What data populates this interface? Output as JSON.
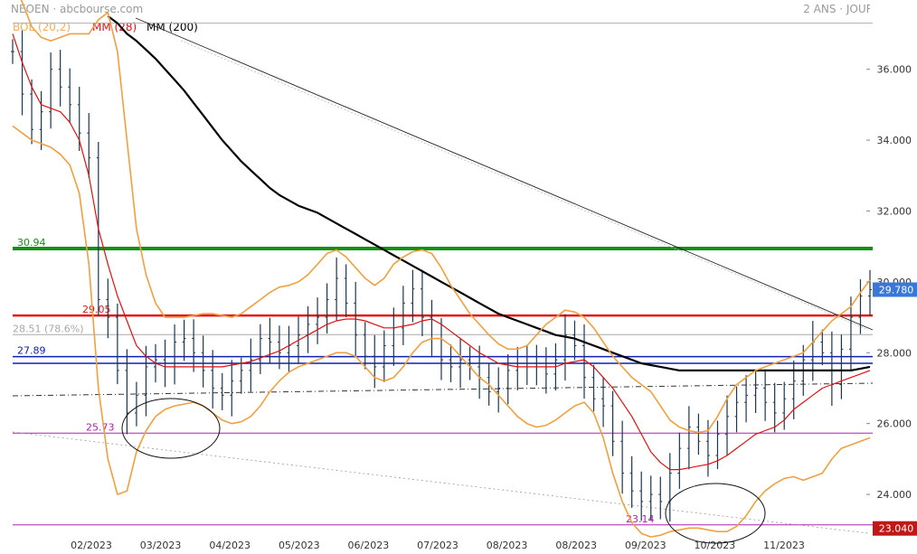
{
  "header": {
    "left": "NEOEN · abcbourse.com",
    "right": "2 ANS · JOUR"
  },
  "legend": [
    {
      "label": "BOL (20,2)",
      "color": "#f0a040"
    },
    {
      "label": "MM (28)",
      "color": "#e01010"
    },
    {
      "label": "MM (200)",
      "color": "#000000"
    }
  ],
  "chart_data": {
    "type": "line",
    "title": "",
    "xlabel": "",
    "ylabel": "",
    "ylim": [
      22.65,
      37.7
    ],
    "x_tick_labels": [
      "02/2023",
      "03/2023",
      "04/2023",
      "05/2023",
      "06/2023",
      "07/2023",
      "08/2023",
      "08/2023",
      "09/2023",
      "10/2023",
      "11/2023"
    ],
    "y_ticks": [
      24,
      26,
      28,
      30,
      32,
      34,
      36
    ],
    "y_tick_labels": [
      "24.000",
      "26.000",
      "28.000",
      "30.000",
      "32.000",
      "34.000",
      "36.000"
    ],
    "last_price": {
      "value": 29.78,
      "label": "29.780"
    },
    "low_price": {
      "value": 23.04,
      "label": "23.040"
    },
    "levels": [
      {
        "name": "level-30-94",
        "value": 30.94,
        "label": "30.94",
        "color": "#129012",
        "width": 4
      },
      {
        "name": "level-29-05",
        "value": 29.05,
        "label": "29.05",
        "color": "#e01818",
        "width": 2.5
      },
      {
        "name": "level-28-51",
        "value": 28.51,
        "label": "28.51  (78.6%)",
        "color": "#a8a8a8",
        "width": 1
      },
      {
        "name": "level-27-89",
        "value": 27.89,
        "label": "27.89",
        "color": "#1020b0",
        "width": 1.5
      },
      {
        "name": "level-27-70",
        "value": 27.7,
        "label": "",
        "color": "#1020b0",
        "width": 1.5
      },
      {
        "name": "level-25-73",
        "value": 25.73,
        "label": "25.73",
        "color": "#b020b0",
        "width": 1
      },
      {
        "name": "level-23-14",
        "value": 23.14,
        "label": "23.14",
        "color": "#b020b0",
        "width": 1
      },
      {
        "name": "level-37-30",
        "value": 37.3,
        "label": "",
        "color": "#b0b0b0",
        "width": 1
      }
    ],
    "price_series": [
      36.5,
      35.3,
      34.3,
      34.8,
      36.0,
      35.5,
      35.0,
      34.2,
      33.5,
      29.5,
      29.0,
      27.5,
      26.3,
      26.8,
      27.6,
      27.8,
      27.6,
      28.3,
      28.4,
      28.0,
      27.5,
      27.0,
      26.8,
      27.2,
      27.5,
      27.8,
      28.4,
      28.3,
      28.0,
      28.2,
      28.5,
      28.8,
      29.0,
      29.5,
      30.1,
      29.4,
      28.5,
      27.9,
      27.6,
      28.2,
      28.7,
      29.4,
      29.8,
      29.0,
      28.4,
      27.8,
      27.6,
      27.8,
      27.6,
      27.3,
      26.9,
      27.0,
      27.5,
      27.6,
      27.7,
      27.6,
      27.4,
      27.8,
      28.5,
      28.2,
      27.3,
      26.7,
      26.5,
      25.5,
      24.6,
      24.1,
      23.8,
      24.0,
      23.8,
      24.6,
      25.3,
      25.9,
      25.5,
      25.1,
      25.7,
      26.2,
      26.6,
      26.8,
      27.0,
      26.6,
      26.3,
      26.7,
      27.2,
      27.8,
      28.3,
      28.0,
      27.1,
      28.1,
      29.0,
      29.6,
      29.78
    ],
    "series": [
      {
        "name": "MM (28)",
        "color": "#e01010",
        "width": 1.2,
        "values": [
          37.0,
          36.2,
          35.5,
          35.0,
          34.9,
          34.8,
          34.5,
          34.0,
          33.0,
          31.5,
          30.5,
          29.6,
          28.9,
          28.2,
          27.9,
          27.7,
          27.6,
          27.6,
          27.6,
          27.6,
          27.6,
          27.6,
          27.6,
          27.65,
          27.7,
          27.75,
          27.85,
          27.95,
          28.05,
          28.2,
          28.35,
          28.5,
          28.65,
          28.8,
          28.9,
          28.95,
          28.95,
          28.9,
          28.8,
          28.7,
          28.7,
          28.75,
          28.8,
          28.9,
          28.95,
          28.8,
          28.6,
          28.4,
          28.2,
          28.0,
          27.85,
          27.7,
          27.65,
          27.6,
          27.6,
          27.6,
          27.6,
          27.6,
          27.7,
          27.75,
          27.8,
          27.6,
          27.3,
          27.0,
          26.6,
          26.2,
          25.7,
          25.2,
          24.9,
          24.7,
          24.7,
          24.75,
          24.8,
          24.85,
          24.95,
          25.1,
          25.3,
          25.5,
          25.7,
          25.8,
          25.9,
          26.1,
          26.4,
          26.6,
          26.8,
          27.0,
          27.1,
          27.2,
          27.3,
          27.4,
          27.5
        ]
      },
      {
        "name": "MM (200)",
        "color": "#000000",
        "width": 2.2,
        "values": [
          null,
          null,
          null,
          null,
          null,
          null,
          null,
          null,
          null,
          null,
          37.5,
          37.3,
          37.0,
          36.8,
          36.55,
          36.3,
          36.0,
          35.7,
          35.4,
          35.05,
          34.7,
          34.35,
          34.0,
          33.7,
          33.4,
          33.15,
          32.9,
          32.65,
          32.45,
          32.3,
          32.15,
          32.05,
          31.95,
          31.8,
          31.65,
          31.5,
          31.35,
          31.2,
          31.05,
          30.9,
          30.75,
          30.6,
          30.45,
          30.3,
          30.15,
          30.0,
          29.85,
          29.7,
          29.55,
          29.4,
          29.25,
          29.1,
          29.0,
          28.9,
          28.8,
          28.7,
          28.6,
          28.5,
          28.45,
          28.4,
          28.3,
          28.2,
          28.1,
          28.0,
          27.9,
          27.8,
          27.7,
          27.65,
          27.6,
          27.55,
          27.5,
          27.5,
          27.5,
          27.5,
          27.5,
          27.5,
          27.5,
          27.5,
          27.5,
          27.5,
          27.5,
          27.5,
          27.5,
          27.5,
          27.5,
          27.5,
          27.5,
          27.5,
          27.5,
          27.55,
          27.6
        ]
      },
      {
        "name": "BOL sup",
        "color": "#f0a040",
        "width": 1.6,
        "values": [
          38.5,
          37.9,
          37.2,
          36.9,
          36.8,
          36.9,
          37.0,
          37.0,
          37.0,
          37.4,
          37.6,
          36.5,
          34.0,
          31.5,
          30.2,
          29.4,
          29.0,
          29.0,
          29.0,
          29.05,
          29.1,
          29.1,
          29.05,
          29.0,
          29.1,
          29.3,
          29.5,
          29.7,
          29.85,
          29.9,
          30.0,
          30.2,
          30.5,
          30.8,
          30.9,
          30.7,
          30.4,
          30.1,
          29.9,
          30.1,
          30.5,
          30.7,
          30.85,
          30.9,
          30.8,
          30.4,
          29.9,
          29.5,
          29.1,
          28.8,
          28.5,
          28.25,
          28.1,
          28.1,
          28.2,
          28.5,
          28.8,
          29.0,
          29.2,
          29.15,
          29.0,
          28.7,
          28.3,
          27.9,
          27.6,
          27.3,
          27.1,
          26.9,
          26.5,
          26.1,
          25.9,
          25.8,
          25.75,
          25.8,
          26.2,
          26.7,
          27.1,
          27.3,
          27.5,
          27.6,
          27.7,
          27.8,
          27.9,
          28.0,
          28.3,
          28.6,
          28.9,
          29.1,
          29.3,
          29.7,
          30.05
        ]
      },
      {
        "name": "BOL inf",
        "color": "#f0a040",
        "width": 1.6,
        "values": [
          34.4,
          34.2,
          34.0,
          33.9,
          33.8,
          33.6,
          33.3,
          32.5,
          30.5,
          27.0,
          25.0,
          24.0,
          24.1,
          25.2,
          25.8,
          26.2,
          26.4,
          26.5,
          26.55,
          26.6,
          26.5,
          26.3,
          26.1,
          26.0,
          26.05,
          26.2,
          26.5,
          26.9,
          27.2,
          27.45,
          27.6,
          27.7,
          27.8,
          27.9,
          28.0,
          28.0,
          27.9,
          27.6,
          27.3,
          27.2,
          27.3,
          27.6,
          28.0,
          28.3,
          28.4,
          28.4,
          28.2,
          27.9,
          27.6,
          27.3,
          27.1,
          26.8,
          26.5,
          26.2,
          26.0,
          25.9,
          25.95,
          26.1,
          26.3,
          26.5,
          26.6,
          26.3,
          25.6,
          24.6,
          23.8,
          23.2,
          22.9,
          22.8,
          22.85,
          22.95,
          23.0,
          23.05,
          23.05,
          23.0,
          22.95,
          22.95,
          23.1,
          23.4,
          23.8,
          24.1,
          24.3,
          24.45,
          24.5,
          24.4,
          24.5,
          24.6,
          25.0,
          25.3,
          25.4,
          25.5,
          25.6
        ]
      }
    ]
  }
}
